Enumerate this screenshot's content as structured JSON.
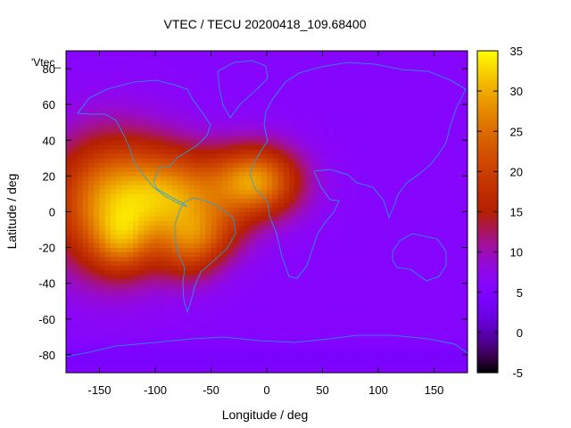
{
  "chart_data": {
    "type": "heatmap",
    "title": "VTEC / TECU 20200418_109.68400",
    "xlabel": "Longitude / deg",
    "ylabel": "Latitude / deg",
    "series_label": "'Vtec_",
    "xlim": [
      -180,
      180
    ],
    "ylim": [
      -90,
      90
    ],
    "x_ticks": [
      -150,
      -100,
      -50,
      0,
      50,
      100,
      150
    ],
    "x_tick_labels": [
      "-150",
      "-100",
      "-50",
      "0",
      "50",
      "100",
      "150"
    ],
    "y_ticks": [
      -80,
      -60,
      -40,
      -20,
      0,
      20,
      40,
      60,
      80
    ],
    "y_tick_labels": [
      "-80",
      "-60",
      "-40",
      "-20",
      "0",
      "20",
      "40",
      "60",
      "80"
    ],
    "colorbar": {
      "range": [
        -5,
        35
      ],
      "ticks": [
        -5,
        0,
        5,
        10,
        15,
        20,
        25,
        30,
        35
      ],
      "tick_labels": [
        "-5",
        "0",
        "5",
        "10",
        "15",
        "20",
        "25",
        "30",
        "35"
      ]
    },
    "background_value": 6,
    "blobs": [
      {
        "lon": -140,
        "lat": 5,
        "sx": 38,
        "sy": 26,
        "amp": 22
      },
      {
        "lon": -130,
        "lat": -18,
        "sx": 18,
        "sy": 12,
        "amp": 8
      },
      {
        "lon": -80,
        "lat": 10,
        "sx": 32,
        "sy": 18,
        "amp": 16
      },
      {
        "lon": -10,
        "lat": 17,
        "sx": 28,
        "sy": 14,
        "amp": 22
      },
      {
        "lon": -55,
        "lat": -12,
        "sx": 25,
        "sy": 12,
        "amp": 10
      },
      {
        "lon": -70,
        "lat": -25,
        "sx": 20,
        "sy": 12,
        "amp": 7
      }
    ]
  }
}
